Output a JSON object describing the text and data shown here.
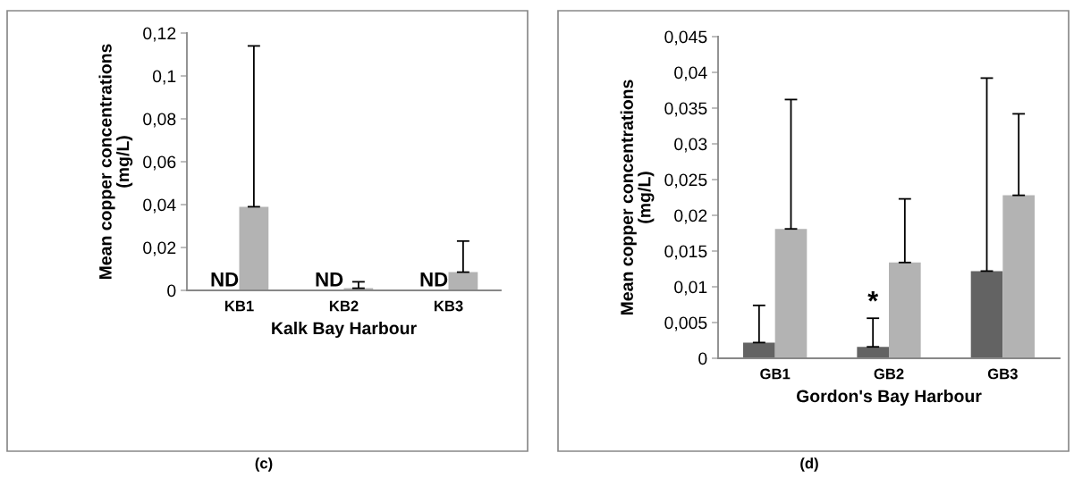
{
  "chart_data": [
    {
      "type": "bar",
      "xlabel": "Kalk Bay Harbour",
      "ylabel": "Mean copper concentrations\n(mg/L)",
      "categories": [
        "KB1",
        "KB2",
        "KB3"
      ],
      "series": [
        {
          "values": [
            null,
            null,
            null
          ],
          "value_labels": [
            "ND",
            "ND",
            "ND"
          ]
        },
        {
          "color": "#b3b3b3",
          "values": [
            0.039,
            0.001,
            0.0085
          ],
          "errors": [
            [
              0.039,
              0.114
            ],
            [
              0.001,
              0.004
            ],
            [
              0.0085,
              0.023
            ]
          ]
        }
      ],
      "ylim": [
        0,
        0.12
      ],
      "yticks": [
        {
          "value": 0,
          "label": "0"
        },
        {
          "value": 0.02,
          "label": "0,02"
        },
        {
          "value": 0.04,
          "label": "0,04"
        },
        {
          "value": 0.06,
          "label": "0,06"
        },
        {
          "value": 0.08,
          "label": "0,08"
        },
        {
          "value": 0.1,
          "label": "0,1"
        },
        {
          "value": 0.12,
          "label": "0,12"
        }
      ],
      "grid": false,
      "annotations": [
        "(c)"
      ]
    },
    {
      "type": "bar",
      "xlabel": "Gordon's Bay Harbour",
      "ylabel": "Mean copper concentrations\n(mg/L)",
      "categories": [
        "GB1",
        "GB2",
        "GB3"
      ],
      "series": [
        {
          "color": "#636363",
          "values": [
            0.0022,
            0.0016,
            0.0122
          ],
          "errors": [
            [
              0.0022,
              0.0074
            ],
            [
              0.0016,
              0.0056
            ],
            [
              0.0122,
              0.0392
            ]
          ]
        },
        {
          "color": "#b3b3b3",
          "values": [
            0.0181,
            0.0134,
            0.0228
          ],
          "errors": [
            [
              0.0181,
              0.0362
            ],
            [
              0.0134,
              0.0223
            ],
            [
              0.0228,
              0.0342
            ]
          ]
        }
      ],
      "ylim": [
        0,
        0.045
      ],
      "yticks": [
        {
          "value": 0,
          "label": "0"
        },
        {
          "value": 0.005,
          "label": "0,005"
        },
        {
          "value": 0.01,
          "label": "0,01"
        },
        {
          "value": 0.015,
          "label": "0,015"
        },
        {
          "value": 0.02,
          "label": "0,02"
        },
        {
          "value": 0.025,
          "label": "0,025"
        },
        {
          "value": 0.03,
          "label": "0,03"
        },
        {
          "value": 0.035,
          "label": "0,035"
        },
        {
          "value": 0.04,
          "label": "0,04"
        },
        {
          "value": 0.045,
          "label": "0,045"
        }
      ],
      "grid": false,
      "annotations": [
        {
          "text": "*",
          "x": "GB2",
          "y": 0.0056
        },
        "(d)"
      ]
    }
  ]
}
